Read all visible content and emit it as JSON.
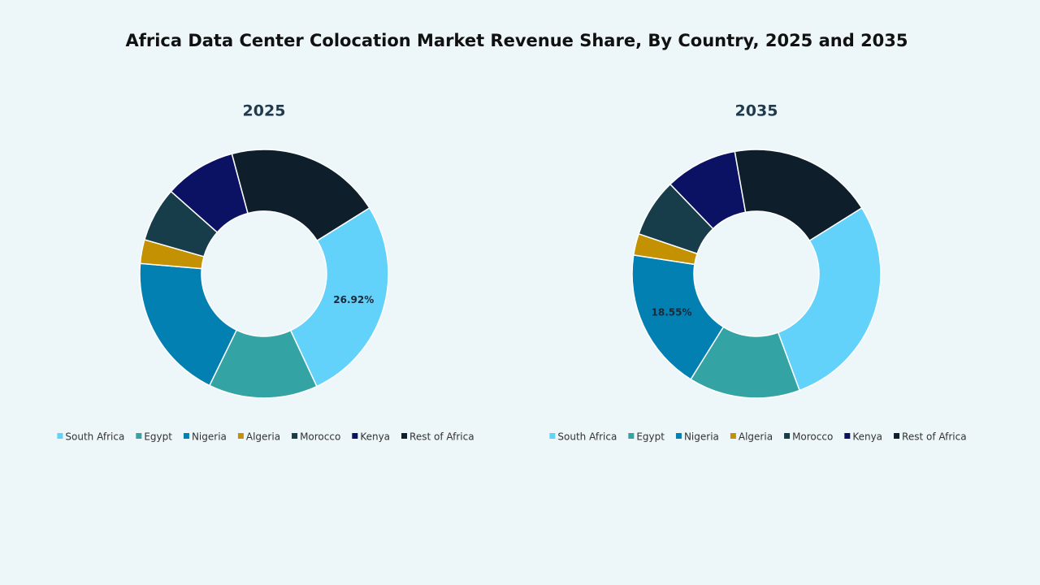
{
  "title": "Africa Data Center Colocation Market Revenue Share, By Country, 2025 and 2035",
  "chart_data": [
    {
      "type": "donut",
      "title": "2025",
      "categories": [
        "South Africa",
        "Egypt",
        "Nigeria",
        "Algeria",
        "Morocco",
        "Kenya",
        "Rest of Africa"
      ],
      "values": [
        26.92,
        14.2,
        19.1,
        3.1,
        7.1,
        9.3,
        20.28
      ],
      "value_labels": [
        "26.92%",
        null,
        null,
        null,
        null,
        null,
        null
      ],
      "colors": [
        "#63d2fb",
        "#33a3a3",
        "#0380b2",
        "#c49102",
        "#173c4a",
        "#0b1263",
        "#0e1f2b"
      ]
    },
    {
      "type": "donut",
      "title": "2035",
      "categories": [
        "South Africa",
        "Egypt",
        "Nigeria",
        "Algeria",
        "Morocco",
        "Kenya",
        "Rest of Africa"
      ],
      "values": [
        28.25,
        14.5,
        18.55,
        2.8,
        7.6,
        9.4,
        18.9
      ],
      "value_labels": [
        null,
        null,
        "18.55%",
        null,
        null,
        null,
        null
      ],
      "colors": [
        "#63d2fb",
        "#33a3a3",
        "#0380b2",
        "#c49102",
        "#173c4a",
        "#0b1263",
        "#0e1f2b"
      ]
    }
  ]
}
